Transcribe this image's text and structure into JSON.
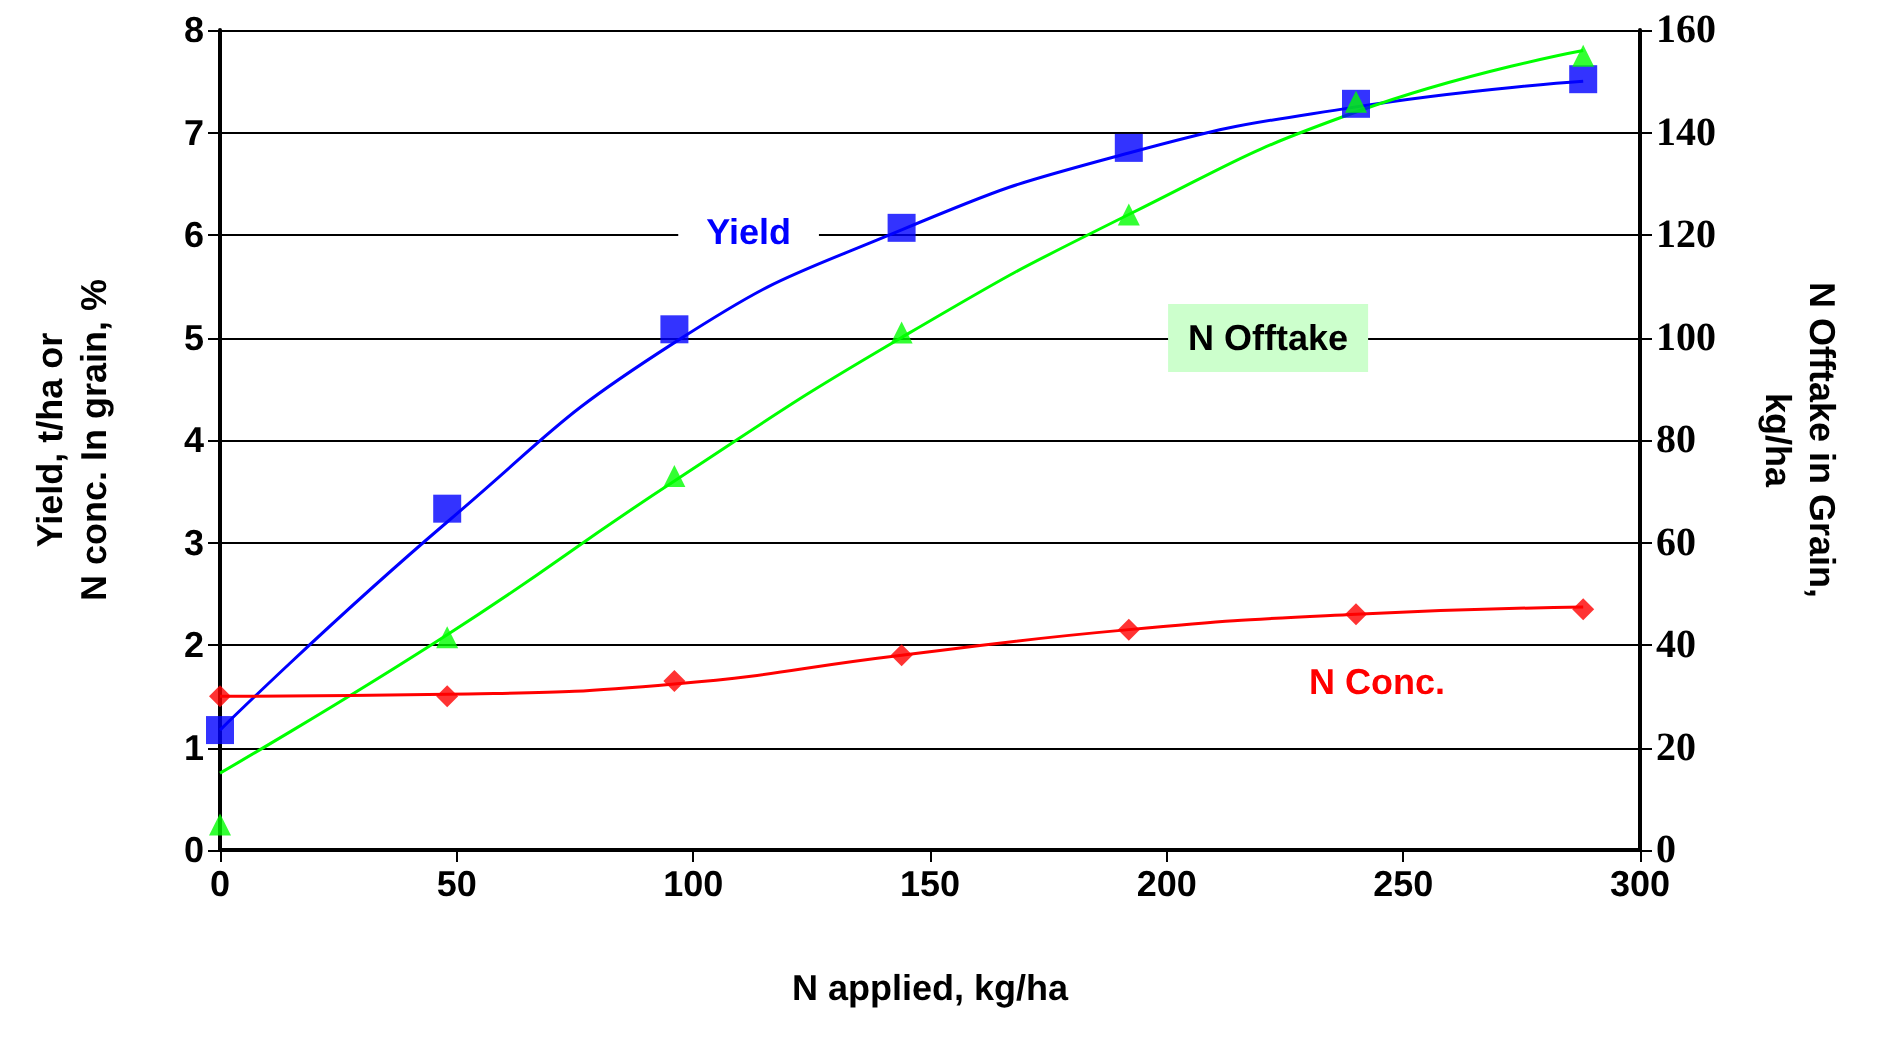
{
  "chart_data": {
    "type": "scatter",
    "xlabel": "N applied, kg/ha",
    "ylabel": "Yield, t/ha or\nN conc. In grain, %",
    "y2label": "N Offtake in Grain,\nkg/ha",
    "xlim": [
      0,
      300
    ],
    "xticks": [
      0,
      50,
      100,
      150,
      200,
      250,
      300
    ],
    "ylim": [
      0,
      8
    ],
    "yticks": [
      0,
      1,
      2,
      3,
      4,
      5,
      6,
      7,
      8
    ],
    "y2lim": [
      0,
      160
    ],
    "y2ticks": [
      0,
      20,
      40,
      60,
      80,
      100,
      120,
      140,
      160
    ],
    "grid": "y",
    "series": [
      {
        "name": "Yield",
        "color": "#0000ff",
        "marker": "square",
        "x": [
          0,
          48,
          96,
          144,
          192,
          240,
          288
        ],
        "values": [
          1.17,
          3.33,
          5.08,
          6.07,
          6.85,
          7.28,
          7.52
        ]
      },
      {
        "name": "N Offtake",
        "color": "#00ff00",
        "marker": "triangle",
        "axis": "y2",
        "x": [
          0,
          48,
          96,
          144,
          192,
          240,
          288
        ],
        "values": [
          5,
          41.5,
          73,
          101,
          124,
          146,
          155
        ]
      },
      {
        "name": "N Conc.",
        "color": "#ff0000",
        "marker": "diamond",
        "x": [
          0,
          48,
          96,
          144,
          192,
          240,
          288
        ],
        "values": [
          1.5,
          1.5,
          1.65,
          1.9,
          2.15,
          2.3,
          2.35
        ]
      },
      {
        "type": "line",
        "color": "#0000ff",
        "marker": "none",
        "x": [
          0,
          48,
          96,
          144,
          192,
          240,
          288
        ],
        "values": [
          1.17,
          3.2,
          4.95,
          6.05,
          6.8,
          7.25,
          7.5
        ]
      },
      {
        "type": "line",
        "color": "#00ff00",
        "marker": "none",
        "axis": "y2",
        "x": [
          0,
          48,
          96,
          144,
          192,
          240,
          288
        ],
        "values": [
          15,
          42,
          72,
          100,
          124,
          144,
          156
        ]
      },
      {
        "type": "line",
        "color": "#ff0000",
        "marker": "none",
        "x": [
          0,
          48,
          96,
          144,
          192,
          240,
          288
        ],
        "values": [
          1.5,
          1.52,
          1.62,
          1.9,
          2.15,
          2.3,
          2.37
        ]
      }
    ]
  }
}
